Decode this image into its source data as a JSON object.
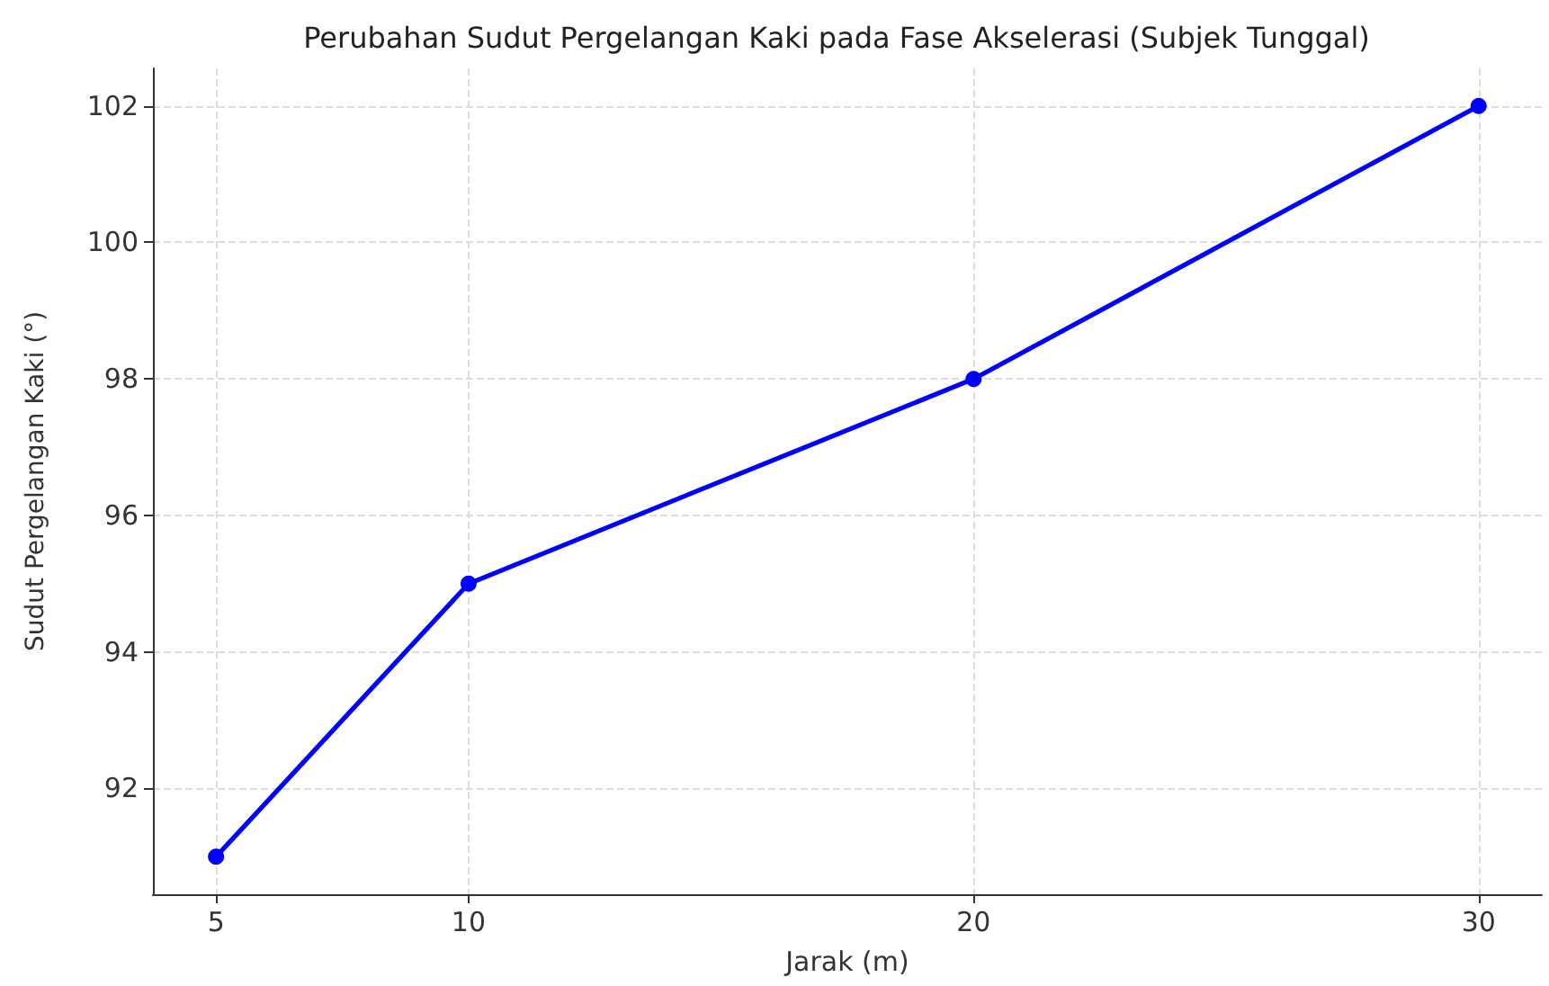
{
  "chart_data": {
    "type": "line",
    "title": "Perubahan Sudut Pergelangan Kaki pada Fase Akselerasi (Subjek Tunggal)",
    "xlabel": "Jarak (m)",
    "ylabel": "Sudut Pergelangan Kaki (°)",
    "x": [
      5,
      10,
      20,
      30
    ],
    "series": [
      {
        "color": "#0000ff",
        "values": [
          91,
          95,
          98,
          102
        ]
      }
    ],
    "xlim": [
      3.75,
      31.25
    ],
    "xticks": [
      5,
      10,
      20,
      30
    ],
    "ylim": [
      90.45,
      102.55
    ],
    "yticks": [
      92,
      94,
      96,
      98,
      100,
      102
    ],
    "grid": true,
    "marker": "circle",
    "line_style": "solid"
  }
}
